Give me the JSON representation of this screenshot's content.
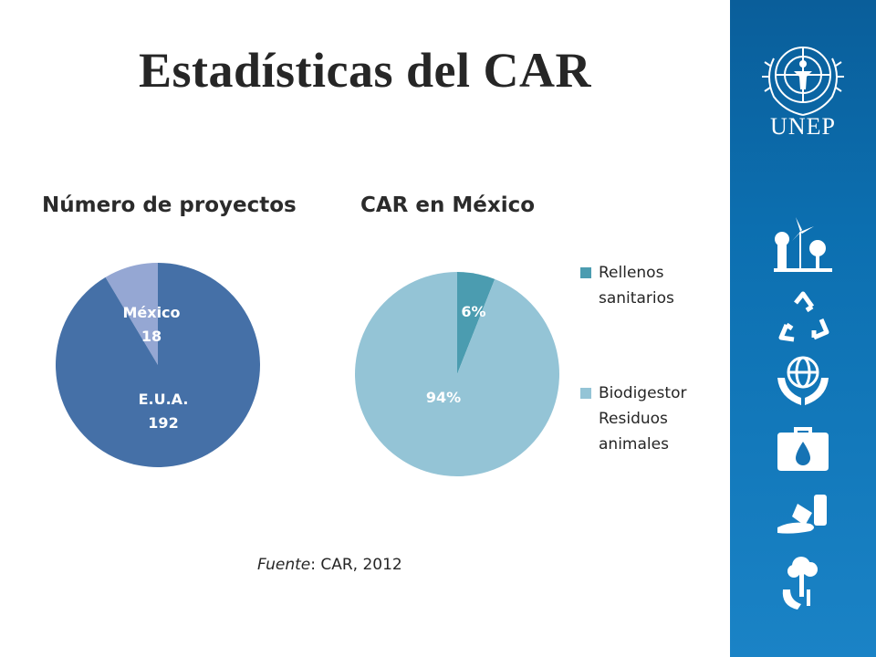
{
  "slide": {
    "title": "Estadísticas del CAR",
    "source_label": "Fuente",
    "source_text": ": CAR, 2012"
  },
  "branding": {
    "logo_text": "UNEP"
  },
  "sidebar_icons": [
    "windmill-trees-icon",
    "recycle-icon",
    "globe-hands-icon",
    "water-drop-case-icon",
    "spill-barrel-icon",
    "tree-hand-icon"
  ],
  "chart_data": [
    {
      "type": "pie",
      "title": "Número de proyectos",
      "slices": [
        {
          "label": "México",
          "value": 18,
          "display": "18",
          "color": "#95a7d3"
        },
        {
          "label": "E.U.A.",
          "value": 192,
          "display": "192",
          "color": "#4570a7"
        }
      ],
      "legend": "none"
    },
    {
      "type": "pie",
      "title": "CAR en México",
      "slices": [
        {
          "label": "Rellenos sanitarios",
          "value": 6,
          "display": "6%",
          "color": "#4b9cb0"
        },
        {
          "label": "Biodigestor Residuos animales",
          "value": 94,
          "display": "94%",
          "color": "#94c4d6"
        }
      ],
      "legend": "right",
      "legend_entries": [
        "Rellenos\nsanitarios",
        "Biodigestor\nResiduos\nanimales"
      ]
    }
  ]
}
